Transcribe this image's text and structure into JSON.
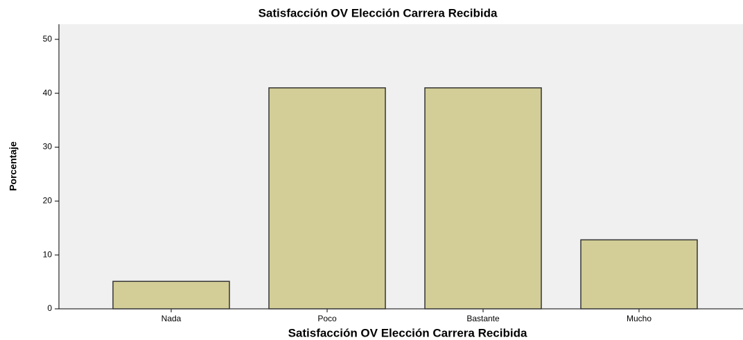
{
  "chart_data": {
    "type": "bar",
    "title": "Satisfacción OV Elección Carrera Recibida",
    "x_label": "Satisfacción OV Elección Carrera Recibida",
    "y_label": "Porcentaje",
    "categories": [
      "Nada",
      "Poco",
      "Bastante",
      "Mucho"
    ],
    "values": [
      5.1,
      41.0,
      41.0,
      12.8
    ],
    "color": "#d3ce97",
    "ylim": [
      0,
      52.8
    ],
    "yticks": [
      0,
      10,
      20,
      30,
      40,
      50
    ],
    "grid": false
  }
}
